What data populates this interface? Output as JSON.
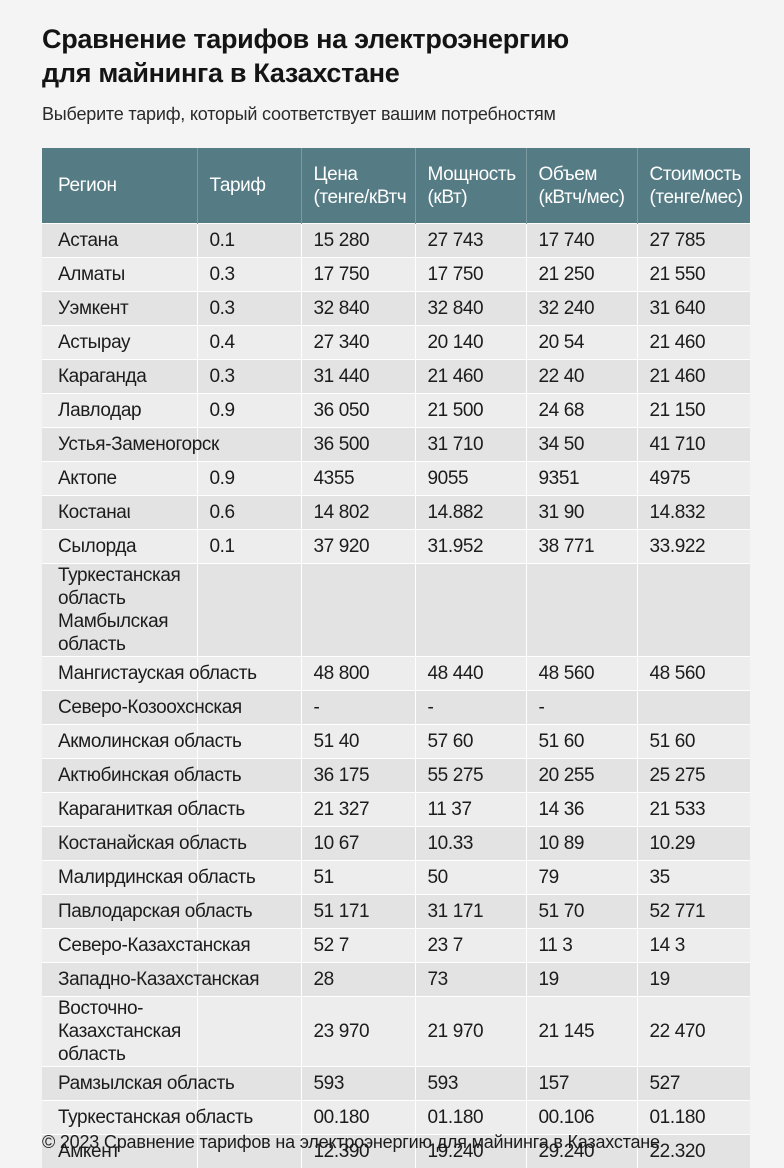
{
  "title_line1": "Сравнение тарифов на электроэнергию",
  "title_line2": "для майнинга в Казахстане",
  "subtitle": "Выберите тариф, который соответствует вашим потребностям",
  "columns": [
    {
      "line1": "Регион",
      "line2": ""
    },
    {
      "line1": "Тариф",
      "line2": ""
    },
    {
      "line1": "Цена",
      "line2": "(тенге/кВтч"
    },
    {
      "line1": "Мощность",
      "line2": "(кВт)"
    },
    {
      "line1": "Объем",
      "line2": "(кВтч/мес)"
    },
    {
      "line1": "Стоимость",
      "line2": "(тенге/мес)"
    }
  ],
  "rows": [
    {
      "region": "Астана",
      "tariff": "0.1",
      "price": "15 280",
      "power": "27 743",
      "volume": "17 740",
      "cost": "27 785"
    },
    {
      "region": "Алматы",
      "tariff": "0.3",
      "price": "17 750",
      "power": "17 750",
      "volume": "21 250",
      "cost": "21 550"
    },
    {
      "region": "Уэмкент",
      "tariff": "0.3",
      "price": "32 840",
      "power": "32 840",
      "volume": "32 240",
      "cost": "31 640"
    },
    {
      "region": "Астырау",
      "tariff": "0.4",
      "price": "27 340",
      "power": "20 140",
      "volume": "20 54",
      "cost": "21 460"
    },
    {
      "region": "Караганда",
      "tariff": "0.3",
      "price": "31 440",
      "power": "21 460",
      "volume": "22 40",
      "cost": "21 460"
    },
    {
      "region": "Лавлодар",
      "tariff": "0.9",
      "price": "36 050",
      "power": "21 500",
      "volume": "24 68",
      "cost": "21 150"
    },
    {
      "region": "Устья-Заменогорск",
      "tariff": "",
      "price": "36 500",
      "power": "31 710",
      "volume": "34 50",
      "cost": "41 710"
    },
    {
      "region": "Актопе",
      "tariff": "0.9",
      "price": "4355",
      "power": "9055",
      "volume": "9351",
      "cost": "4975"
    },
    {
      "region": "Костанаι",
      "tariff": "0.6",
      "price": "14 802",
      "power": "14.882",
      "volume": "31 90",
      "cost": "14.832"
    },
    {
      "region": "Сылорда",
      "tariff": "0.1",
      "price": "37 920",
      "power": "31.952",
      "volume": "38 771",
      "cost": "33.922"
    },
    {
      "region": "Туркестанская область Мамбылская область",
      "tariff": "",
      "price": "",
      "power": "",
      "volume": "",
      "cost": "",
      "tall": true
    },
    {
      "region": "Мангистауская область",
      "tariff": "",
      "price": "48 800",
      "power": "48 440",
      "volume": "48 560",
      "cost": "48 560"
    },
    {
      "region": "Северо-Козоохснская",
      "tariff": "",
      "price": "-",
      "power": "-",
      "volume": "-",
      "cost": ""
    },
    {
      "region": "Акмолинская область",
      "tariff": "",
      "price": "51 40",
      "power": "57 60",
      "volume": "51 60",
      "cost": "51 60"
    },
    {
      "region": "Актюбинская область",
      "tariff": "",
      "price": "36 175",
      "power": "55 275",
      "volume": "20 255",
      "cost": "25 275"
    },
    {
      "region": "Караганиткая область",
      "tariff": "",
      "price": "21 327",
      "power": "11 37",
      "volume": "14 36",
      "cost": "21 533"
    },
    {
      "region": "Костанайская область",
      "tariff": "",
      "price": "10 67",
      "power": "10.33",
      "volume": "10 89",
      "cost": "10.29"
    },
    {
      "region": "Малирдинская область",
      "tariff": "",
      "price": "51",
      "power": "50",
      "volume": "79",
      "cost": "35"
    },
    {
      "region": "Павлодарская область",
      "tariff": "",
      "price": "51 171",
      "power": "31 171",
      "volume": "51 70",
      "cost": "52 771"
    },
    {
      "region": "Северо-Казахстанская",
      "tariff": "",
      "price": "52 7",
      "power": "23 7",
      "volume": "11 3",
      "cost": "14 3"
    },
    {
      "region": "Западно-Казахстанская",
      "tariff": "",
      "price": "28",
      "power": "73",
      "volume": "19",
      "cost": "19"
    },
    {
      "region": "Восточно-Казахстанская область",
      "tariff": "",
      "price": "23 970",
      "power": "21 970",
      "volume": "21 145",
      "cost": "22 470",
      "tall": true
    },
    {
      "region": "Рамзылская область",
      "tariff": "",
      "price": "593",
      "power": "593",
      "volume": "157",
      "cost": "527"
    },
    {
      "region": "Туркестанская область",
      "tariff": "",
      "price": "00.180",
      "power": "01.180",
      "volume": "00.106",
      "cost": "01.180"
    },
    {
      "region": "Амкент",
      "tariff": "",
      "price": "12.390",
      "power": "19.240",
      "volume": "29.240",
      "cost": "22.320"
    }
  ],
  "footer": "© 2023 Сравнение тарифов на электроэнергию для майнинга в Казахстане"
}
